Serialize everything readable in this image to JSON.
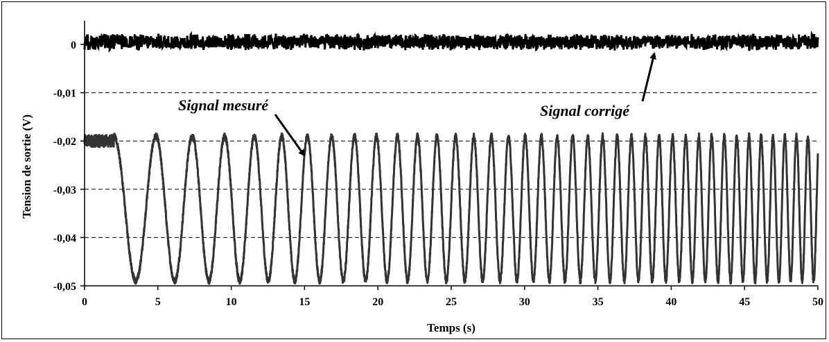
{
  "chart_data": {
    "type": "line",
    "xlabel": "Temps (s)",
    "ylabel": "Tension de sortie (V)",
    "xlim": [
      0,
      50
    ],
    "ylim": [
      -0.05,
      0
    ],
    "x_ticks": [
      "0",
      "5",
      "10",
      "15",
      "20",
      "25",
      "30",
      "35",
      "40",
      "45",
      "50"
    ],
    "y_ticks": [
      "0",
      "-0,01",
      "-0,02",
      "-0,03",
      "-0,04",
      "-0,05"
    ],
    "grid": "horizontal dashed",
    "series": [
      {
        "name": "Signal mesuré",
        "description_values": {
          "baseline_until_s": 2.0,
          "baseline_level": -0.02,
          "min": -0.049,
          "max": -0.019,
          "start_frequency_hz": 0.32,
          "end_frequency_hz": 1.3
        },
        "color": "#333333"
      },
      {
        "name": "Signal corrigé",
        "description_values": {
          "level": 0.0005,
          "noise_amplitude": 0.0018
        },
        "color": "#000000"
      }
    ],
    "annotations": [
      {
        "text": "Signal mesuré"
      },
      {
        "text": "Signal corrigé"
      }
    ]
  }
}
